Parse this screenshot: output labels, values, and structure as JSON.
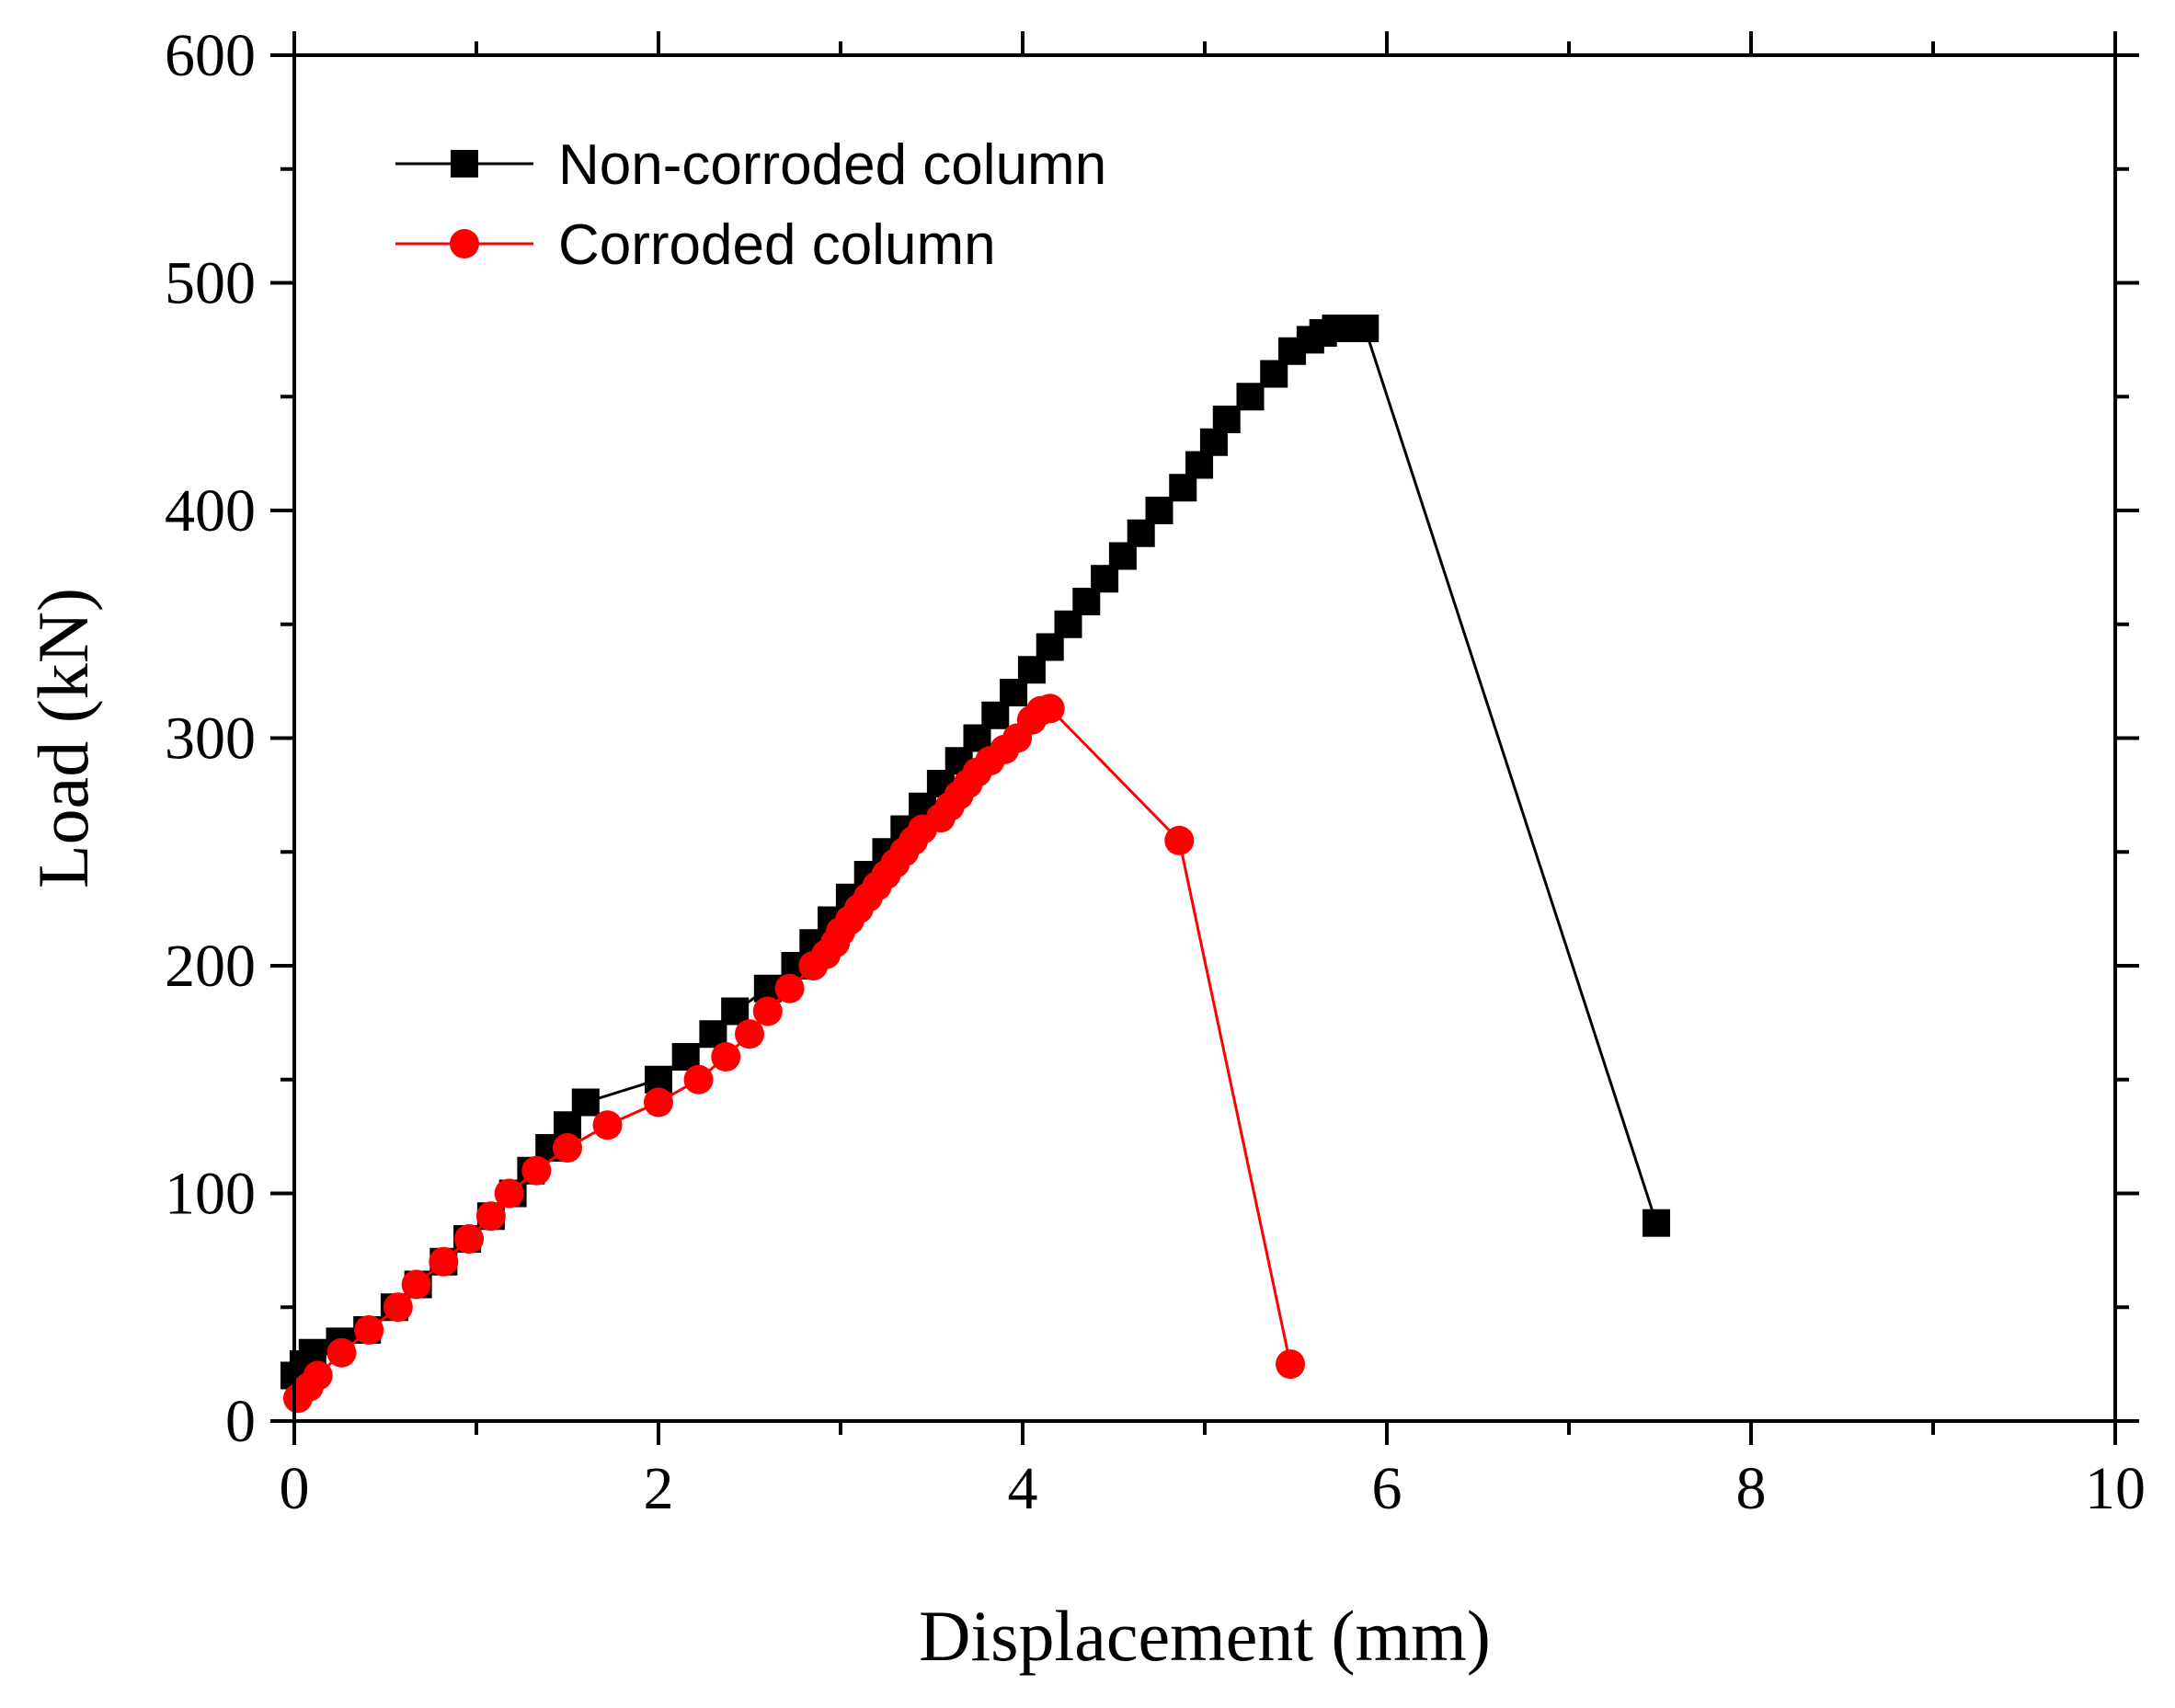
{
  "chart_data": {
    "type": "line",
    "title": "",
    "xlabel": "Displacement (mm)",
    "ylabel": "Load (kN)",
    "xlim": [
      0,
      10
    ],
    "ylim": [
      0,
      600
    ],
    "xticks": [
      0,
      2,
      4,
      6,
      8,
      10
    ],
    "yticks": [
      0,
      100,
      200,
      300,
      400,
      500,
      600
    ],
    "grid": false,
    "legend_position": "top-left",
    "series": [
      {
        "name": "Non-corroded column",
        "color": "#000000",
        "marker": "square",
        "x": [
          0,
          0.05,
          0.1,
          0.25,
          0.4,
          0.55,
          0.68,
          0.82,
          0.95,
          1.08,
          1.2,
          1.3,
          1.4,
          1.5,
          1.6,
          2.0,
          2.15,
          2.3,
          2.42,
          2.6,
          2.75,
          2.85,
          2.95,
          3.05,
          3.15,
          3.25,
          3.35,
          3.45,
          3.55,
          3.65,
          3.75,
          3.85,
          3.95,
          4.05,
          4.15,
          4.25,
          4.35,
          4.45,
          4.55,
          4.65,
          4.75,
          4.88,
          4.97,
          5.05,
          5.12,
          5.25,
          5.38,
          5.48,
          5.58,
          5.65,
          5.72,
          5.8,
          5.88,
          7.48
        ],
        "y": [
          20,
          25,
          30,
          35,
          40,
          50,
          60,
          70,
          80,
          90,
          100,
          110,
          120,
          130,
          140,
          150,
          160,
          170,
          180,
          190,
          200,
          210,
          220,
          230,
          240,
          250,
          260,
          270,
          280,
          290,
          300,
          310,
          320,
          330,
          340,
          350,
          360,
          370,
          380,
          390,
          400,
          410,
          420,
          430,
          440,
          450,
          460,
          470,
          475,
          478,
          480,
          480,
          480,
          87
        ]
      },
      {
        "name": "Corroded column",
        "color": "#ff0000",
        "marker": "circle",
        "x": [
          0.02,
          0.08,
          0.13,
          0.26,
          0.41,
          0.57,
          0.67,
          0.82,
          0.96,
          1.08,
          1.18,
          1.33,
          1.5,
          1.72,
          2.0,
          2.22,
          2.37,
          2.5,
          2.6,
          2.72,
          2.85,
          2.92,
          2.97,
          3.0,
          3.05,
          3.1,
          3.15,
          3.2,
          3.25,
          3.3,
          3.35,
          3.4,
          3.45,
          3.55,
          3.6,
          3.65,
          3.7,
          3.75,
          3.82,
          3.9,
          3.97,
          4.05,
          4.1,
          4.15,
          4.86,
          5.47
        ],
        "y": [
          10,
          15,
          20,
          30,
          40,
          50,
          60,
          70,
          80,
          90,
          100,
          110,
          120,
          130,
          140,
          150,
          160,
          170,
          180,
          190,
          200,
          205,
          210,
          215,
          220,
          225,
          230,
          235,
          240,
          245,
          250,
          255,
          260,
          265,
          270,
          275,
          280,
          285,
          290,
          295,
          300,
          308,
          312,
          313,
          255,
          25
        ]
      }
    ]
  }
}
